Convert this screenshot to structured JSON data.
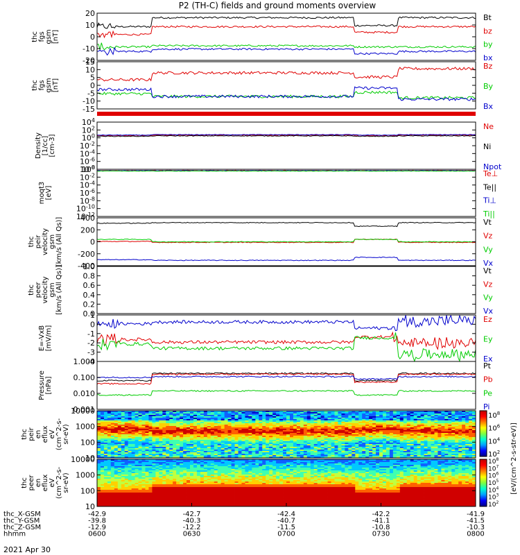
{
  "title": "P2 (TH-C) fields and ground moments overview",
  "date_label": "2021 Apr 30",
  "colors": {
    "black": "#000000",
    "red": "#e00000",
    "green": "#00cc00",
    "blue": "#0000cc"
  },
  "x_axis": {
    "row_labels": [
      "thc_X-GSM",
      "thc_Y-GSM",
      "thc_Z-GSM",
      "hhmm"
    ],
    "columns": [
      {
        "values": [
          "-42.9",
          "-39.8",
          "-12.9",
          "0600"
        ]
      },
      {
        "values": [
          "-42.7",
          "-40.3",
          "-12.2",
          "0630"
        ]
      },
      {
        "values": [
          "-42.4",
          "-40.7",
          "-11.5",
          "0700"
        ]
      },
      {
        "values": [
          "-42.2",
          "-41.1",
          "-10.8",
          "0730"
        ]
      },
      {
        "values": [
          "-41.9",
          "-41.5",
          "-10.3",
          "0800"
        ]
      }
    ]
  },
  "colorbar": {
    "label": "[eV/(cm^2-s-str-eV)]",
    "top_ticks": [
      "10^8",
      "10^6",
      "10^4",
      "10^2"
    ],
    "bottom_ticks": [
      "10^8",
      "10^7",
      "10^6",
      "10^5",
      "10^4",
      "10^3",
      "10^2"
    ]
  },
  "chart_data": [
    {
      "type": "line",
      "ylabel": [
        "thc",
        "fgs",
        "gsm",
        "[nT]"
      ],
      "yticks": [
        "20",
        "10",
        "0",
        "-10",
        "-20"
      ],
      "ylim": [
        -20,
        22
      ],
      "legend": [
        {
          "name": "Bt",
          "color": "black"
        },
        {
          "name": "bz",
          "color": "red"
        },
        {
          "name": "by",
          "color": "green"
        },
        {
          "name": "bx",
          "color": "blue"
        }
      ]
    },
    {
      "type": "line",
      "ylabel": [
        "thc",
        "fgs",
        "gsm",
        "[nT]"
      ],
      "yticks": [
        "15",
        "10",
        "5",
        "0",
        "-5",
        "-10",
        "-15"
      ],
      "ylim": [
        -18,
        16
      ],
      "legend": [
        {
          "name": "Bz",
          "color": "red"
        },
        {
          "name": "By",
          "color": "green"
        },
        {
          "name": "Bx",
          "color": "blue"
        }
      ]
    },
    {
      "type": "line",
      "ylabel": [
        "Density",
        "[1/cc]",
        "[cm-3]"
      ],
      "yticks": [
        "10^4",
        "10^2",
        "10^0",
        "10^-2",
        "10^-4",
        "10^-6",
        "10^-8"
      ],
      "ylim": [
        -8,
        4
      ],
      "log": true,
      "legend": [
        {
          "name": "Ne",
          "color": "red"
        },
        {
          "name": "Ni",
          "color": "black"
        },
        {
          "name": "Npot",
          "color": "blue"
        }
      ]
    },
    {
      "type": "line",
      "ylabel": [
        "moqt3",
        "[eV]"
      ],
      "yticks": [
        "10^0",
        "10^-2",
        "10^-4",
        "10^-6",
        "10^-8",
        "10^-10",
        "10^-12"
      ],
      "ylim": [
        -12,
        0
      ],
      "log": true,
      "legend": [
        {
          "name": "Te⊥",
          "color": "red"
        },
        {
          "name": "Te||",
          "color": "black"
        },
        {
          "name": "Ti⊥",
          "color": "blue"
        },
        {
          "name": "Ti||",
          "color": "green"
        }
      ]
    },
    {
      "type": "line",
      "ylabel": [
        "thc",
        "peir",
        "velocity",
        "gsm",
        "[km/s (All Qs)]"
      ],
      "yticks": [
        "400",
        "200",
        "0",
        "-200",
        "-400"
      ],
      "ylim": [
        -400,
        400
      ],
      "legend": [
        {
          "name": "Vt",
          "color": "black"
        },
        {
          "name": "Vz",
          "color": "red"
        },
        {
          "name": "Vy",
          "color": "green"
        },
        {
          "name": "Vx",
          "color": "blue"
        }
      ]
    },
    {
      "type": "line",
      "ylabel": [
        "thc",
        "peer",
        "velocity",
        "gsm",
        "[km/s (All Qs)]"
      ],
      "yticks": [
        "1.0",
        "0.8",
        "0.6",
        "0.4",
        "0.2",
        "0.0"
      ],
      "ylim": [
        0,
        1
      ],
      "legend": [
        {
          "name": "Vt",
          "color": "black"
        },
        {
          "name": "Vz",
          "color": "red"
        },
        {
          "name": "Vy",
          "color": "green"
        },
        {
          "name": "Vx",
          "color": "blue"
        }
      ]
    },
    {
      "type": "line",
      "ylabel": [
        "E=-VxB",
        "[mV/m]"
      ],
      "yticks": [
        "1",
        "0",
        "-1",
        "-2",
        "-3",
        "-4"
      ],
      "ylim": [
        -4,
        1.3
      ],
      "legend": [
        {
          "name": "Ez",
          "color": "red"
        },
        {
          "name": "Ey",
          "color": "green"
        },
        {
          "name": "Ex",
          "color": "blue"
        }
      ]
    },
    {
      "type": "line",
      "ylabel": [
        "Pressure",
        "[nPa]"
      ],
      "yticks": [
        "1.000",
        "0.100",
        "0.010",
        "0.001"
      ],
      "ylim": [
        -3,
        0
      ],
      "log": true,
      "legend": [
        {
          "name": "Pt",
          "color": "black"
        },
        {
          "name": "Pb",
          "color": "red"
        },
        {
          "name": "Pe",
          "color": "green"
        },
        {
          "name": "Pi",
          "color": "blue"
        }
      ]
    },
    {
      "type": "heatmap",
      "ylabel": [
        "thc",
        "peir",
        "en",
        "eflux",
        "eV",
        "(cm^2-s-",
        "sr-eV)"
      ],
      "yticks": [
        "10000",
        "1000",
        "100",
        "10"
      ],
      "ylim": [
        3,
        30000
      ],
      "log": true
    },
    {
      "type": "heatmap",
      "ylabel": [
        "thc",
        "peer",
        "en",
        "eflux",
        "eV",
        "(cm^2-s-",
        "sr-eV)"
      ],
      "yticks": [
        "10000",
        "1000",
        "100",
        "10"
      ],
      "ylim": [
        6,
        30000
      ],
      "log": true
    }
  ]
}
